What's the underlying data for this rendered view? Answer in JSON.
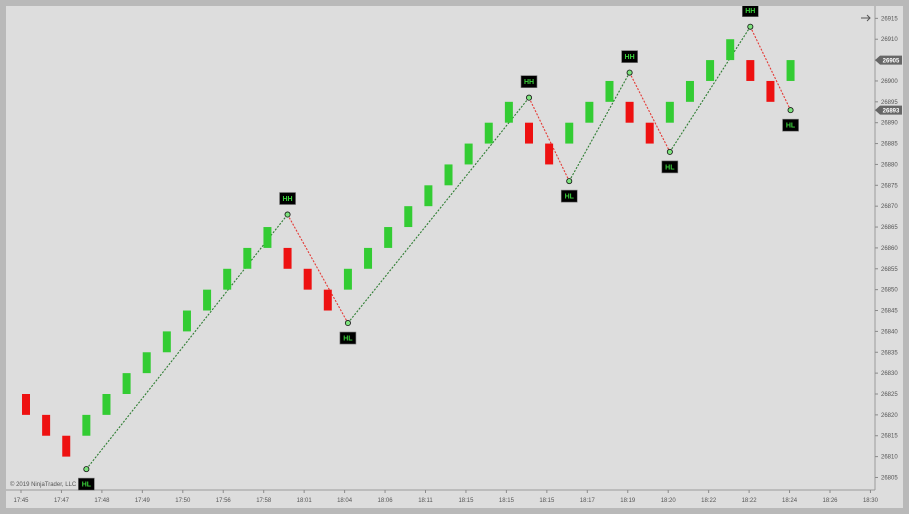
{
  "chart_data": {
    "type": "renko",
    "brick_size": 5,
    "x_ticks": [
      "17:45",
      "17:47",
      "17:48",
      "17:49",
      "17:50",
      "17:56",
      "17:58",
      "18:01",
      "18:04",
      "18:06",
      "18:11",
      "18:15",
      "18:15",
      "18:15",
      "18:17",
      "18:19",
      "18:20",
      "18:22",
      "18:22",
      "18:24",
      "18:26",
      "18:30"
    ],
    "y_ticks": [
      26805,
      26810,
      26815,
      26820,
      26825,
      26830,
      26835,
      26840,
      26845,
      26850,
      26855,
      26860,
      26865,
      26870,
      26875,
      26880,
      26885,
      26890,
      26895,
      26900,
      26905,
      26910,
      26915
    ],
    "ylim": [
      26802,
      26917
    ],
    "bricks": [
      {
        "dir": "down",
        "from": 26825,
        "to": 26820
      },
      {
        "dir": "down",
        "from": 26820,
        "to": 26815
      },
      {
        "dir": "down",
        "from": 26815,
        "to": 26810
      },
      {
        "dir": "up",
        "from": 26815,
        "to": 26820
      },
      {
        "dir": "up",
        "from": 26820,
        "to": 26825
      },
      {
        "dir": "up",
        "from": 26825,
        "to": 26830
      },
      {
        "dir": "up",
        "from": 26830,
        "to": 26835
      },
      {
        "dir": "up",
        "from": 26835,
        "to": 26840
      },
      {
        "dir": "up",
        "from": 26840,
        "to": 26845
      },
      {
        "dir": "up",
        "from": 26845,
        "to": 26850
      },
      {
        "dir": "up",
        "from": 26850,
        "to": 26855
      },
      {
        "dir": "up",
        "from": 26855,
        "to": 26860
      },
      {
        "dir": "up",
        "from": 26860,
        "to": 26865
      },
      {
        "dir": "down",
        "from": 26860,
        "to": 26855
      },
      {
        "dir": "down",
        "from": 26855,
        "to": 26850
      },
      {
        "dir": "down",
        "from": 26850,
        "to": 26845
      },
      {
        "dir": "up",
        "from": 26850,
        "to": 26855
      },
      {
        "dir": "up",
        "from": 26855,
        "to": 26860
      },
      {
        "dir": "up",
        "from": 26860,
        "to": 26865
      },
      {
        "dir": "up",
        "from": 26865,
        "to": 26870
      },
      {
        "dir": "up",
        "from": 26870,
        "to": 26875
      },
      {
        "dir": "up",
        "from": 26875,
        "to": 26880
      },
      {
        "dir": "up",
        "from": 26880,
        "to": 26885
      },
      {
        "dir": "up",
        "from": 26885,
        "to": 26890
      },
      {
        "dir": "up",
        "from": 26890,
        "to": 26895
      },
      {
        "dir": "down",
        "from": 26890,
        "to": 26885
      },
      {
        "dir": "down",
        "from": 26885,
        "to": 26880
      },
      {
        "dir": "up",
        "from": 26885,
        "to": 26890
      },
      {
        "dir": "up",
        "from": 26890,
        "to": 26895
      },
      {
        "dir": "up",
        "from": 26895,
        "to": 26900
      },
      {
        "dir": "down",
        "from": 26895,
        "to": 26890
      },
      {
        "dir": "down",
        "from": 26890,
        "to": 26885
      },
      {
        "dir": "up",
        "from": 26890,
        "to": 26895
      },
      {
        "dir": "up",
        "from": 26895,
        "to": 26900
      },
      {
        "dir": "up",
        "from": 26900,
        "to": 26905
      },
      {
        "dir": "up",
        "from": 26905,
        "to": 26910
      },
      {
        "dir": "down",
        "from": 26905,
        "to": 26900
      },
      {
        "dir": "down",
        "from": 26900,
        "to": 26895
      },
      {
        "dir": "up",
        "from": 26900,
        "to": 26905
      }
    ],
    "swings": [
      {
        "brick": 3,
        "price": 26807,
        "label": "HL",
        "where": "below"
      },
      {
        "brick": 13,
        "price": 26868,
        "label": "HH",
        "where": "above"
      },
      {
        "brick": 16,
        "price": 26842,
        "label": "HL",
        "where": "below"
      },
      {
        "brick": 25,
        "price": 26896,
        "label": "HH",
        "where": "above"
      },
      {
        "brick": 27,
        "price": 26876,
        "label": "HL",
        "where": "below"
      },
      {
        "brick": 30,
        "price": 26902,
        "label": "HH",
        "where": "above"
      },
      {
        "brick": 32,
        "price": 26883,
        "label": "HL",
        "where": "below"
      },
      {
        "brick": 36,
        "price": 26913,
        "label": "HH",
        "where": "above"
      },
      {
        "brick": 38,
        "price": 26893,
        "label": "HL",
        "where": "below"
      }
    ],
    "price_markers": [
      {
        "value": 26905,
        "label": "26905"
      },
      {
        "value": 26893,
        "label": "26893"
      }
    ],
    "copyright": "© 2019 NinjaTrader, LLC",
    "colors": {
      "up": "#33cc33",
      "down": "#ee1111",
      "up_line": "#2e7d32",
      "down_line": "#e53935",
      "swing_point": "#7ee37e",
      "label_bg": "#000000",
      "label_text": "#3bd23b",
      "flag": "#666666"
    },
    "icons": {
      "nav": "arrow-right-icon"
    }
  }
}
